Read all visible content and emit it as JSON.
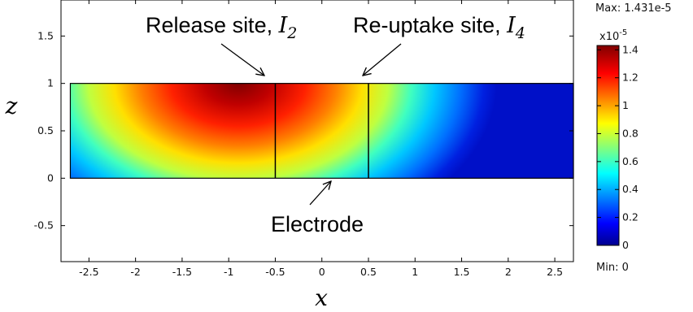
{
  "chart_data": {
    "type": "heatmap",
    "field": "surface plot over a rectangular domain, peak near x = -0.85, z = 1",
    "xlabel": "x",
    "ylabel": "z",
    "xlim": [
      -2.8,
      2.7
    ],
    "ylim": [
      -0.88,
      1.88
    ],
    "x_ticks": [
      "-2.5",
      "-2",
      "-1.5",
      "-1",
      "-0.5",
      "0",
      "0.5",
      "1",
      "1.5",
      "2",
      "2.5"
    ],
    "x_tick_values": [
      -2.5,
      -2,
      -1.5,
      -1,
      -0.5,
      0,
      0.5,
      1,
      1.5,
      2,
      2.5
    ],
    "y_ticks": [
      "-0.5",
      "0",
      "0.5",
      "1",
      "1.5"
    ],
    "y_tick_values": [
      -0.5,
      0,
      0.5,
      1,
      1.5
    ],
    "domain": {
      "x": [
        -2.7,
        2.7
      ],
      "z": [
        0,
        1
      ]
    },
    "interior_boundaries_x": [
      -0.5,
      0.5
    ],
    "colorbar": {
      "max_label": "Max: 1.431e-5",
      "min_label": "Min: 0",
      "exponent_base": "x10",
      "exponent_power": "-5",
      "range": [
        0,
        1.431
      ],
      "ticks": [
        "0",
        "0.2",
        "0.4",
        "0.6",
        "0.8",
        "1",
        "1.2",
        "1.4"
      ],
      "tick_values": [
        0,
        0.2,
        0.4,
        0.6,
        0.8,
        1.0,
        1.2,
        1.4
      ],
      "colormap": "jet"
    },
    "annotations": {
      "release": {
        "text": "Release site, ",
        "sym": "I",
        "sub": "2",
        "points_to_x": -0.5
      },
      "reuptake": {
        "text": "Re-uptake site, ",
        "sym": "I",
        "sub": "4",
        "points_to_x": 0.5
      },
      "electrode": {
        "text": "Electrode"
      }
    }
  }
}
